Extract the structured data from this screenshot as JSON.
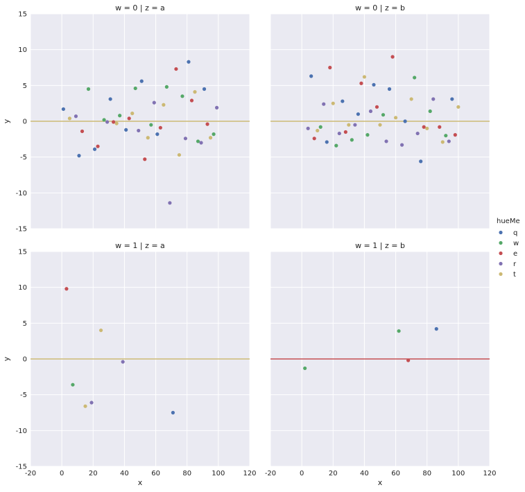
{
  "chart_data": {
    "type": "scatter",
    "facets": {
      "row_var": "w",
      "col_var": "z",
      "rows": [
        "0",
        "1"
      ],
      "cols": [
        "a",
        "b"
      ]
    },
    "xlabel": "x",
    "ylabel": "y",
    "xlim": [
      -20,
      120
    ],
    "ylim": [
      -15,
      15
    ],
    "xticks": [
      -20,
      0,
      20,
      40,
      60,
      80,
      100,
      120
    ],
    "yticks": [
      -15,
      -10,
      -5,
      0,
      5,
      10,
      15
    ],
    "legend": {
      "title": "hueMe",
      "placement": "right-center",
      "entries": [
        "q",
        "w",
        "e",
        "r",
        "t"
      ]
    },
    "colors": {
      "q": "#4c72b0",
      "w": "#55a868",
      "e": "#c44e52",
      "r": "#8172b2",
      "t": "#ccb974",
      "background": "#eaeaf2",
      "grid": "#ffffff"
    },
    "panels": [
      {
        "title": "w = 0 | z = a",
        "hline": {
          "y": 0,
          "color": "#ccb974"
        },
        "points": [
          {
            "x": 1,
            "y": 1.7,
            "hue": "q"
          },
          {
            "x": 5,
            "y": 0.4,
            "hue": "t"
          },
          {
            "x": 9,
            "y": 0.7,
            "hue": "r"
          },
          {
            "x": 11,
            "y": -4.8,
            "hue": "q"
          },
          {
            "x": 13,
            "y": -1.4,
            "hue": "e"
          },
          {
            "x": 17,
            "y": 4.5,
            "hue": "w"
          },
          {
            "x": 21,
            "y": -3.9,
            "hue": "q"
          },
          {
            "x": 23,
            "y": -3.5,
            "hue": "e"
          },
          {
            "x": 27,
            "y": 0.2,
            "hue": "w"
          },
          {
            "x": 29,
            "y": -0.1,
            "hue": "r"
          },
          {
            "x": 31,
            "y": 3.1,
            "hue": "q"
          },
          {
            "x": 33,
            "y": -0.1,
            "hue": "e"
          },
          {
            "x": 35,
            "y": -0.3,
            "hue": "t"
          },
          {
            "x": 37,
            "y": 0.8,
            "hue": "w"
          },
          {
            "x": 41,
            "y": -1.2,
            "hue": "q"
          },
          {
            "x": 43,
            "y": 0.4,
            "hue": "e"
          },
          {
            "x": 45,
            "y": 1.1,
            "hue": "t"
          },
          {
            "x": 47,
            "y": 4.6,
            "hue": "w"
          },
          {
            "x": 49,
            "y": -1.3,
            "hue": "r"
          },
          {
            "x": 51,
            "y": 5.6,
            "hue": "q"
          },
          {
            "x": 53,
            "y": -5.3,
            "hue": "e"
          },
          {
            "x": 55,
            "y": -2.3,
            "hue": "t"
          },
          {
            "x": 57,
            "y": -0.5,
            "hue": "w"
          },
          {
            "x": 59,
            "y": 2.6,
            "hue": "r"
          },
          {
            "x": 61,
            "y": -1.8,
            "hue": "q"
          },
          {
            "x": 63,
            "y": -0.9,
            "hue": "e"
          },
          {
            "x": 65,
            "y": 2.3,
            "hue": "t"
          },
          {
            "x": 67,
            "y": 4.8,
            "hue": "w"
          },
          {
            "x": 69,
            "y": -11.4,
            "hue": "r"
          },
          {
            "x": 73,
            "y": 7.3,
            "hue": "e"
          },
          {
            "x": 75,
            "y": -4.7,
            "hue": "t"
          },
          {
            "x": 77,
            "y": 3.5,
            "hue": "w"
          },
          {
            "x": 79,
            "y": -2.4,
            "hue": "r"
          },
          {
            "x": 81,
            "y": 8.3,
            "hue": "q"
          },
          {
            "x": 83,
            "y": 2.9,
            "hue": "e"
          },
          {
            "x": 85,
            "y": 4.1,
            "hue": "t"
          },
          {
            "x": 87,
            "y": -2.8,
            "hue": "w"
          },
          {
            "x": 89,
            "y": -3.0,
            "hue": "r"
          },
          {
            "x": 91,
            "y": 4.5,
            "hue": "q"
          },
          {
            "x": 93,
            "y": -0.4,
            "hue": "e"
          },
          {
            "x": 95,
            "y": -2.3,
            "hue": "t"
          },
          {
            "x": 97,
            "y": -1.8,
            "hue": "w"
          },
          {
            "x": 99,
            "y": 1.9,
            "hue": "r"
          }
        ]
      },
      {
        "title": "w = 0 | z = b",
        "hline": {
          "y": 0,
          "color": "#ccb974"
        },
        "points": [
          {
            "x": 4,
            "y": -1.0,
            "hue": "r"
          },
          {
            "x": 6,
            "y": 6.3,
            "hue": "q"
          },
          {
            "x": 8,
            "y": -2.4,
            "hue": "e"
          },
          {
            "x": 10,
            "y": -1.3,
            "hue": "t"
          },
          {
            "x": 12,
            "y": -0.8,
            "hue": "w"
          },
          {
            "x": 14,
            "y": 2.4,
            "hue": "r"
          },
          {
            "x": 16,
            "y": -2.9,
            "hue": "q"
          },
          {
            "x": 18,
            "y": 7.5,
            "hue": "e"
          },
          {
            "x": 20,
            "y": 2.5,
            "hue": "t"
          },
          {
            "x": 22,
            "y": -3.4,
            "hue": "w"
          },
          {
            "x": 24,
            "y": -1.7,
            "hue": "r"
          },
          {
            "x": 26,
            "y": 2.8,
            "hue": "q"
          },
          {
            "x": 28,
            "y": -1.5,
            "hue": "e"
          },
          {
            "x": 30,
            "y": -0.5,
            "hue": "t"
          },
          {
            "x": 32,
            "y": -2.6,
            "hue": "w"
          },
          {
            "x": 34,
            "y": -0.5,
            "hue": "r"
          },
          {
            "x": 36,
            "y": 1.0,
            "hue": "q"
          },
          {
            "x": 38,
            "y": 5.3,
            "hue": "e"
          },
          {
            "x": 40,
            "y": 6.2,
            "hue": "t"
          },
          {
            "x": 42,
            "y": -1.9,
            "hue": "w"
          },
          {
            "x": 44,
            "y": 1.4,
            "hue": "r"
          },
          {
            "x": 46,
            "y": 5.1,
            "hue": "q"
          },
          {
            "x": 48,
            "y": 2.0,
            "hue": "e"
          },
          {
            "x": 50,
            "y": -0.5,
            "hue": "t"
          },
          {
            "x": 52,
            "y": 0.9,
            "hue": "w"
          },
          {
            "x": 54,
            "y": -2.8,
            "hue": "r"
          },
          {
            "x": 56,
            "y": 4.5,
            "hue": "q"
          },
          {
            "x": 58,
            "y": 9.0,
            "hue": "e"
          },
          {
            "x": 60,
            "y": 0.5,
            "hue": "t"
          },
          {
            "x": 64,
            "y": -3.3,
            "hue": "r"
          },
          {
            "x": 66,
            "y": 0.0,
            "hue": "q"
          },
          {
            "x": 70,
            "y": 3.1,
            "hue": "t"
          },
          {
            "x": 72,
            "y": 6.1,
            "hue": "w"
          },
          {
            "x": 74,
            "y": -1.7,
            "hue": "r"
          },
          {
            "x": 76,
            "y": -5.6,
            "hue": "q"
          },
          {
            "x": 78,
            "y": -0.8,
            "hue": "e"
          },
          {
            "x": 80,
            "y": -1.0,
            "hue": "t"
          },
          {
            "x": 82,
            "y": 1.4,
            "hue": "w"
          },
          {
            "x": 84,
            "y": 3.1,
            "hue": "r"
          },
          {
            "x": 88,
            "y": -0.8,
            "hue": "e"
          },
          {
            "x": 90,
            "y": -2.9,
            "hue": "t"
          },
          {
            "x": 92,
            "y": -2.0,
            "hue": "w"
          },
          {
            "x": 94,
            "y": -2.8,
            "hue": "r"
          },
          {
            "x": 96,
            "y": 3.1,
            "hue": "q"
          },
          {
            "x": 98,
            "y": -1.9,
            "hue": "e"
          },
          {
            "x": 100,
            "y": 2.0,
            "hue": "t"
          }
        ]
      },
      {
        "title": "w = 1 | z = a",
        "hline": {
          "y": 0,
          "color": "#ccb974"
        },
        "points": [
          {
            "x": 3,
            "y": 9.8,
            "hue": "e"
          },
          {
            "x": 7,
            "y": -3.6,
            "hue": "w"
          },
          {
            "x": 15,
            "y": -6.6,
            "hue": "t"
          },
          {
            "x": 19,
            "y": -6.1,
            "hue": "r"
          },
          {
            "x": 25,
            "y": 4.0,
            "hue": "t"
          },
          {
            "x": 39,
            "y": -0.4,
            "hue": "r"
          },
          {
            "x": 71,
            "y": -7.5,
            "hue": "q"
          }
        ]
      },
      {
        "title": "w = 1 | z = b",
        "hline": {
          "y": 0,
          "color": "#c44e52"
        },
        "points": [
          {
            "x": 2,
            "y": -1.3,
            "hue": "w"
          },
          {
            "x": 62,
            "y": 3.9,
            "hue": "w"
          },
          {
            "x": 68,
            "y": -0.2,
            "hue": "e"
          },
          {
            "x": 86,
            "y": 4.2,
            "hue": "q"
          }
        ]
      }
    ]
  }
}
